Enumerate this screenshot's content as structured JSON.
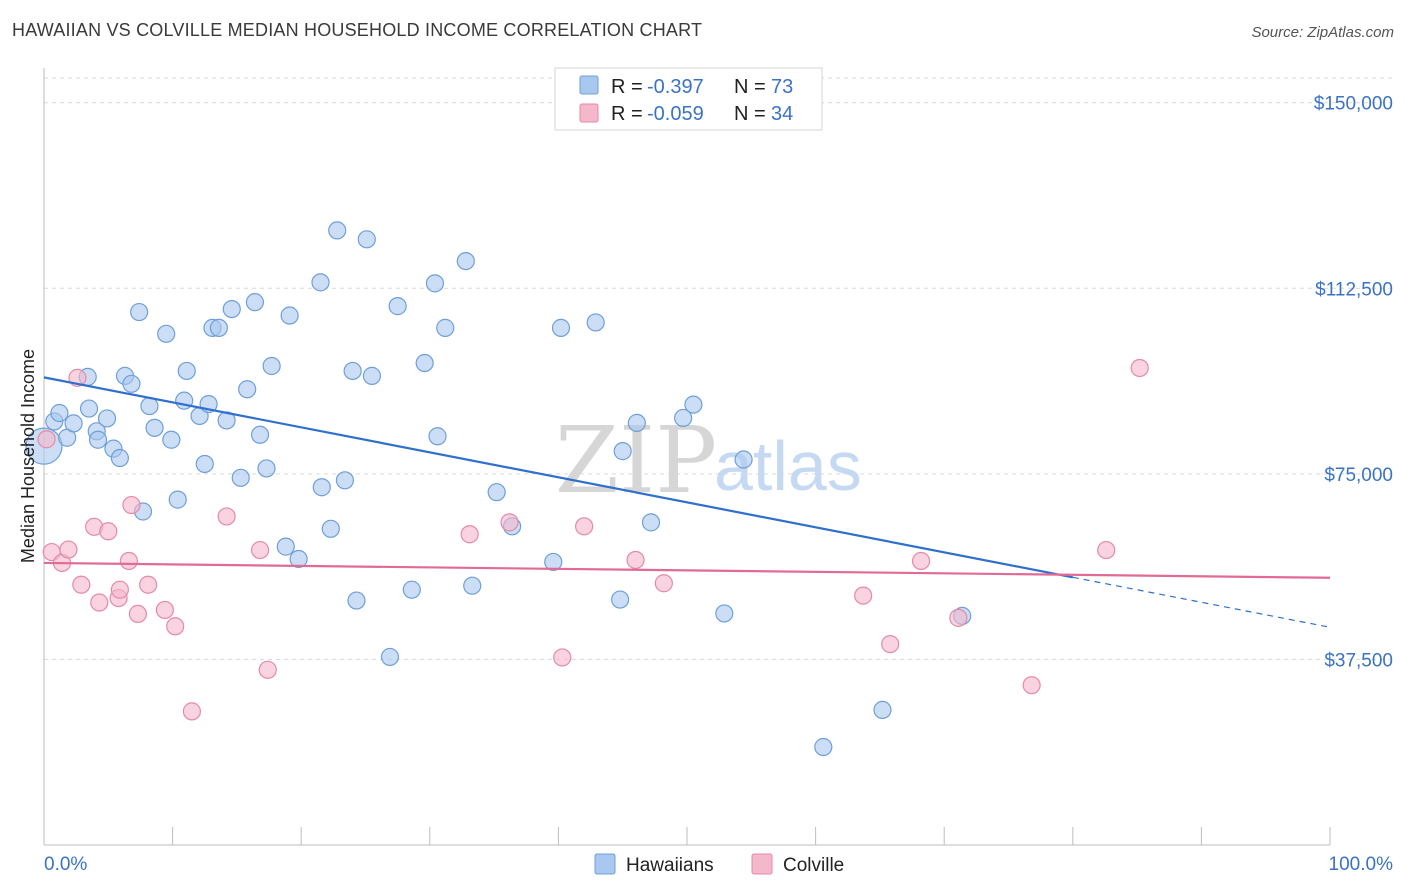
{
  "header": {
    "title": "HAWAIIAN VS COLVILLE MEDIAN HOUSEHOLD INCOME CORRELATION CHART",
    "source": "Source: ZipAtlas.com"
  },
  "watermark": {
    "zip": "ZIP",
    "atlas": "atlas"
  },
  "legend_top": {
    "rows": [
      {
        "r_label": "R = ",
        "r_value": "-0.397",
        "n_label": "N = ",
        "n_value": "73",
        "color": "#a9c8f0"
      },
      {
        "r_label": "R = ",
        "r_value": "-0.059",
        "n_label": "N = ",
        "n_value": "34",
        "color": "#f5b8cb"
      }
    ]
  },
  "legend_bottom": {
    "items": [
      {
        "label": "Hawaiians",
        "color": "#a9c8f0"
      },
      {
        "label": "Colville",
        "color": "#f5b8cb"
      }
    ]
  },
  "colors": {
    "blue_fill": "#a9c8f0",
    "blue_stroke": "#6f9fd8",
    "blue_line": "#2f6fce",
    "pink_fill": "#f5b8cb",
    "pink_stroke": "#e58aa6",
    "pink_line": "#e26a96",
    "label_blue": "#3b73c4",
    "grid": "#d9d9d9"
  },
  "chart_data": {
    "type": "scatter",
    "title": "HAWAIIAN VS COLVILLE MEDIAN HOUSEHOLD INCOME CORRELATION CHART",
    "xlabel": "",
    "ylabel": "Median Household Income",
    "xlim": [
      0,
      100
    ],
    "ylim": [
      0,
      155000
    ],
    "x_tick_labels": [
      "0.0%",
      "100.0%"
    ],
    "y_ticks": [
      37500,
      75000,
      112500,
      150000
    ],
    "y_tick_labels": [
      "$37,500",
      "$75,000",
      "$112,500",
      "$150,000"
    ],
    "grid": true,
    "legend_position": "top-center",
    "series": [
      {
        "name": "Hawaiians",
        "points": [
          [
            0.0,
            80600
          ],
          [
            0.8,
            85600
          ],
          [
            1.2,
            87300
          ],
          [
            1.8,
            82300
          ],
          [
            2.3,
            85200
          ],
          [
            3.4,
            94600
          ],
          [
            3.5,
            88200
          ],
          [
            4.1,
            83600
          ],
          [
            4.2,
            81900
          ],
          [
            4.9,
            86200
          ],
          [
            5.4,
            80100
          ],
          [
            5.9,
            78200
          ],
          [
            6.3,
            94800
          ],
          [
            6.8,
            93200
          ],
          [
            7.4,
            107700
          ],
          [
            7.7,
            67400
          ],
          [
            8.2,
            88700
          ],
          [
            8.6,
            84300
          ],
          [
            9.5,
            103300
          ],
          [
            9.9,
            81900
          ],
          [
            10.4,
            69800
          ],
          [
            10.9,
            89800
          ],
          [
            11.1,
            95800
          ],
          [
            12.1,
            86700
          ],
          [
            12.5,
            77000
          ],
          [
            12.8,
            89100
          ],
          [
            13.1,
            104500
          ],
          [
            13.6,
            104500
          ],
          [
            14.2,
            85800
          ],
          [
            14.6,
            108300
          ],
          [
            15.3,
            74200
          ],
          [
            15.8,
            92100
          ],
          [
            16.4,
            109700
          ],
          [
            16.8,
            82900
          ],
          [
            17.3,
            76100
          ],
          [
            17.7,
            96800
          ],
          [
            18.8,
            60300
          ],
          [
            19.1,
            107000
          ],
          [
            19.8,
            57800
          ],
          [
            21.5,
            113700
          ],
          [
            21.6,
            72300
          ],
          [
            22.3,
            63900
          ],
          [
            22.8,
            124200
          ],
          [
            23.4,
            73700
          ],
          [
            24.0,
            95800
          ],
          [
            24.3,
            49400
          ],
          [
            25.1,
            122400
          ],
          [
            25.5,
            94800
          ],
          [
            26.9,
            38000
          ],
          [
            27.5,
            108900
          ],
          [
            28.6,
            51600
          ],
          [
            29.6,
            97400
          ],
          [
            30.4,
            113500
          ],
          [
            30.6,
            82600
          ],
          [
            31.2,
            104500
          ],
          [
            32.8,
            118000
          ],
          [
            33.3,
            52400
          ],
          [
            35.2,
            71300
          ],
          [
            36.4,
            64400
          ],
          [
            39.6,
            57200
          ],
          [
            40.2,
            104500
          ],
          [
            42.9,
            105600
          ],
          [
            44.8,
            49600
          ],
          [
            45.0,
            79600
          ],
          [
            46.1,
            85300
          ],
          [
            47.2,
            65200
          ],
          [
            49.7,
            86300
          ],
          [
            50.5,
            89000
          ],
          [
            52.9,
            46800
          ],
          [
            54.4,
            77900
          ],
          [
            60.6,
            19800
          ],
          [
            65.2,
            27300
          ],
          [
            71.4,
            46300
          ]
        ]
      },
      {
        "name": "Colville",
        "points": [
          [
            0.2,
            82000
          ],
          [
            0.6,
            59200
          ],
          [
            1.4,
            57000
          ],
          [
            1.9,
            59700
          ],
          [
            2.6,
            94400
          ],
          [
            2.9,
            52600
          ],
          [
            3.9,
            64300
          ],
          [
            4.3,
            49000
          ],
          [
            5.0,
            63400
          ],
          [
            5.8,
            49900
          ],
          [
            5.9,
            51600
          ],
          [
            6.6,
            57400
          ],
          [
            6.8,
            68700
          ],
          [
            7.3,
            46700
          ],
          [
            8.1,
            52600
          ],
          [
            9.4,
            47500
          ],
          [
            10.2,
            44200
          ],
          [
            11.5,
            27000
          ],
          [
            14.2,
            66400
          ],
          [
            16.8,
            59600
          ],
          [
            17.4,
            35400
          ],
          [
            33.1,
            62800
          ],
          [
            36.2,
            65200
          ],
          [
            40.3,
            37900
          ],
          [
            42.0,
            64400
          ],
          [
            46.0,
            57600
          ],
          [
            48.2,
            52900
          ],
          [
            63.7,
            50400
          ],
          [
            65.8,
            40600
          ],
          [
            68.2,
            57400
          ],
          [
            71.1,
            45900
          ],
          [
            76.8,
            32300
          ],
          [
            82.6,
            59600
          ],
          [
            85.2,
            96400
          ]
        ]
      }
    ],
    "trend_lines": [
      {
        "series": "Hawaiians",
        "from": [
          0,
          94500
        ],
        "to": [
          100,
          44000
        ],
        "solid_until_x": 80
      },
      {
        "series": "Colville",
        "from": [
          0,
          57000
        ],
        "to": [
          100,
          54000
        ]
      }
    ]
  }
}
